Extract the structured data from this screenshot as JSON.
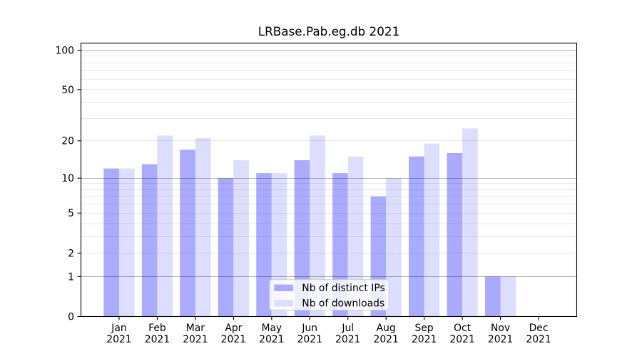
{
  "figure": {
    "title": "LRBase.Pab.eg.db 2021",
    "background_color": "#ffffff"
  },
  "chart_data": {
    "type": "bar",
    "title": "LRBase.Pab.eg.db 2021",
    "categories": [
      "Jan 2021",
      "Feb 2021",
      "Mar 2021",
      "Apr 2021",
      "May 2021",
      "Jun 2021",
      "Jul 2021",
      "Aug 2021",
      "Sep 2021",
      "Oct 2021",
      "Nov 2021",
      "Dec 2021"
    ],
    "series": [
      {
        "name": "Nb of distinct IPs",
        "color": "#aaaaff",
        "values": [
          12,
          13,
          17,
          10,
          11,
          14,
          11,
          7,
          15,
          16,
          1,
          0
        ]
      },
      {
        "name": "Nb of downloads",
        "color": "#ddddff",
        "values": [
          12,
          22,
          21,
          14,
          11,
          22,
          15,
          10,
          19,
          25,
          1,
          0
        ]
      }
    ],
    "xlabel": "",
    "ylabel": "",
    "yscale": "log1p",
    "ylim": [
      0,
      113
    ],
    "yticks": [
      0,
      1,
      2,
      5,
      10,
      20,
      50,
      100
    ],
    "grid": {
      "major_at": [
        1,
        10,
        100
      ],
      "minor_at": [
        2,
        3,
        4,
        5,
        6,
        7,
        8,
        9,
        20,
        30,
        40,
        50,
        60,
        70,
        80,
        90
      ],
      "major_color": "rgba(0,0,0,0.30)",
      "minor_color": "rgba(0,0,0,0.09)"
    },
    "legend": {
      "position": "lower center",
      "entries": [
        "Nb of distinct IPs",
        "Nb of downloads"
      ]
    }
  }
}
